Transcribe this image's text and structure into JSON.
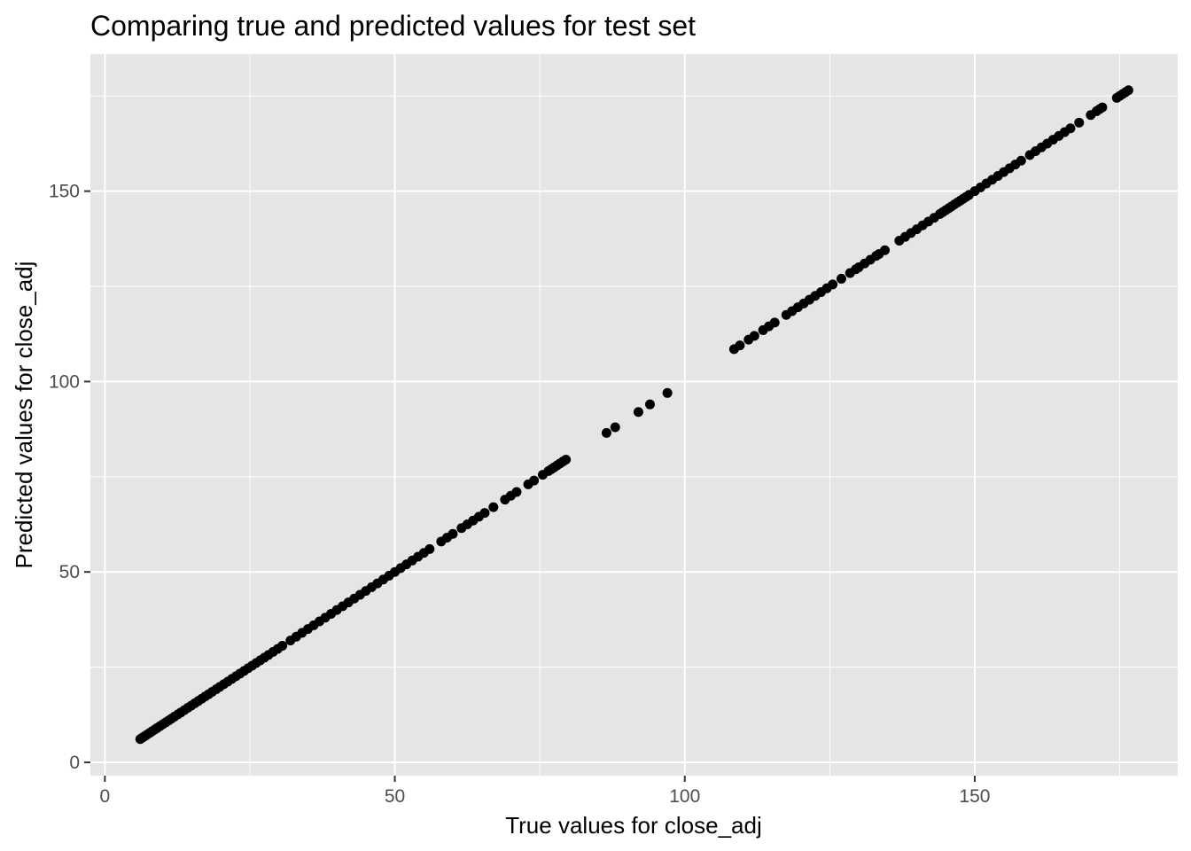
{
  "chart_data": {
    "type": "scatter",
    "title": "Comparing true and predicted values for test set",
    "xlabel": "True values for close_adj",
    "ylabel": "Predicted values for close_adj",
    "xlim": [
      -2.5,
      185
    ],
    "ylim": [
      -3.5,
      186
    ],
    "x_ticks": [
      0,
      50,
      100,
      150
    ],
    "y_ticks": [
      0,
      50,
      100,
      150
    ],
    "x_tick_labels": [
      "0",
      "50",
      "100",
      "150"
    ],
    "y_tick_labels": [
      "0",
      "50",
      "100",
      "150"
    ],
    "grid": true,
    "legend": "none",
    "colors": {
      "panel": "#e5e5e5",
      "grid": "#ffffff",
      "point": "#000000",
      "tick": "#4d4d4d"
    },
    "series": [
      {
        "x": [
          6.1,
          6.5,
          6.9,
          7.3,
          7.7,
          8.1,
          8.6,
          9.0,
          9.5,
          10.0,
          10.5,
          11.0,
          11.5,
          12.0,
          12.6,
          13.1,
          13.7,
          14.3,
          14.9,
          15.5,
          16.1,
          16.7,
          17.3,
          17.9,
          18.5,
          19.2,
          19.8,
          20.5,
          21.2,
          21.9,
          22.6,
          23.3,
          24.0,
          24.7,
          25.4,
          26.1,
          26.8,
          27.5,
          28.2,
          29.0,
          29.8,
          30.6,
          32.0,
          33.0,
          34.0,
          35.0,
          36.0,
          37.0,
          38.0,
          39.0,
          40.0,
          41.0,
          42.0,
          43.0,
          44.0,
          45.0,
          46.0,
          47.0,
          48.0,
          49.0,
          50.0,
          51.0,
          52.0,
          53.0,
          54.0,
          55.0,
          56.0,
          58.0,
          59.0,
          60.0,
          61.5,
          62.5,
          63.5,
          64.5,
          65.5,
          67.0,
          69.0,
          70.0,
          71.0,
          73.0,
          74.0,
          75.5,
          76.5,
          77.0,
          77.5,
          78.0,
          78.5,
          79.0,
          79.5,
          86.5,
          88.0,
          92.0,
          94.0,
          97.0,
          108.5,
          109.5,
          111.0,
          112.0,
          113.5,
          114.5,
          115.5,
          117.5,
          118.5,
          119.5,
          120.5,
          121.5,
          122.5,
          123.5,
          124.5,
          125.5,
          127.0,
          128.5,
          129.5,
          130.0,
          131.0,
          132.0,
          133.0,
          133.5,
          134.5,
          137.0,
          138.0,
          139.0,
          140.0,
          141.0,
          142.0,
          143.0,
          144.0,
          144.5,
          145.0,
          145.5,
          146.0,
          146.5,
          147.0,
          147.5,
          148.0,
          148.5,
          149.0,
          150.0,
          151.0,
          152.0,
          153.0,
          154.0,
          155.0,
          156.0,
          157.0,
          158.0,
          159.5,
          160.5,
          161.5,
          162.5,
          163.5,
          164.5,
          165.5,
          166.5,
          168.0,
          170.0,
          171.0,
          171.5,
          172.0,
          174.5,
          175.0,
          175.5,
          176.0,
          176.5
        ]
      }
    ]
  }
}
